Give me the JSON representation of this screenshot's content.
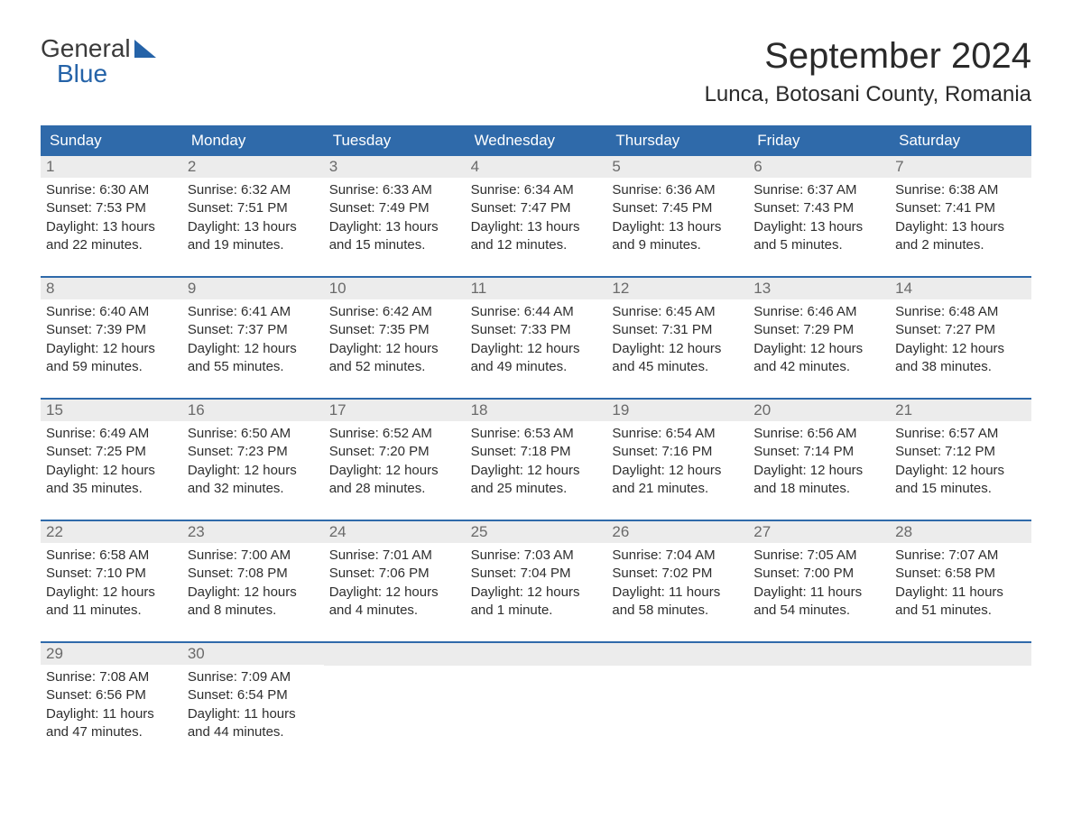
{
  "logo": {
    "general": "General",
    "blue": "Blue"
  },
  "title": "September 2024",
  "location": "Lunca, Botosani County, Romania",
  "style": {
    "header_bg": "#2f6aaa",
    "header_fg": "#ffffff",
    "daynum_bg": "#ececec",
    "daynum_fg": "#6a6a6a",
    "body_fg": "#2e2e2e",
    "week_border": "#2f6aaa",
    "title_fontsize": 40,
    "location_fontsize": 24,
    "dow_fontsize": 17,
    "body_fontsize": 15
  },
  "dow": [
    "Sunday",
    "Monday",
    "Tuesday",
    "Wednesday",
    "Thursday",
    "Friday",
    "Saturday"
  ],
  "weeks": [
    [
      {
        "n": "1",
        "sr": "Sunrise: 6:30 AM",
        "ss": "Sunset: 7:53 PM",
        "d1": "Daylight: 13 hours",
        "d2": "and 22 minutes."
      },
      {
        "n": "2",
        "sr": "Sunrise: 6:32 AM",
        "ss": "Sunset: 7:51 PM",
        "d1": "Daylight: 13 hours",
        "d2": "and 19 minutes."
      },
      {
        "n": "3",
        "sr": "Sunrise: 6:33 AM",
        "ss": "Sunset: 7:49 PM",
        "d1": "Daylight: 13 hours",
        "d2": "and 15 minutes."
      },
      {
        "n": "4",
        "sr": "Sunrise: 6:34 AM",
        "ss": "Sunset: 7:47 PM",
        "d1": "Daylight: 13 hours",
        "d2": "and 12 minutes."
      },
      {
        "n": "5",
        "sr": "Sunrise: 6:36 AM",
        "ss": "Sunset: 7:45 PM",
        "d1": "Daylight: 13 hours",
        "d2": "and 9 minutes."
      },
      {
        "n": "6",
        "sr": "Sunrise: 6:37 AM",
        "ss": "Sunset: 7:43 PM",
        "d1": "Daylight: 13 hours",
        "d2": "and 5 minutes."
      },
      {
        "n": "7",
        "sr": "Sunrise: 6:38 AM",
        "ss": "Sunset: 7:41 PM",
        "d1": "Daylight: 13 hours",
        "d2": "and 2 minutes."
      }
    ],
    [
      {
        "n": "8",
        "sr": "Sunrise: 6:40 AM",
        "ss": "Sunset: 7:39 PM",
        "d1": "Daylight: 12 hours",
        "d2": "and 59 minutes."
      },
      {
        "n": "9",
        "sr": "Sunrise: 6:41 AM",
        "ss": "Sunset: 7:37 PM",
        "d1": "Daylight: 12 hours",
        "d2": "and 55 minutes."
      },
      {
        "n": "10",
        "sr": "Sunrise: 6:42 AM",
        "ss": "Sunset: 7:35 PM",
        "d1": "Daylight: 12 hours",
        "d2": "and 52 minutes."
      },
      {
        "n": "11",
        "sr": "Sunrise: 6:44 AM",
        "ss": "Sunset: 7:33 PM",
        "d1": "Daylight: 12 hours",
        "d2": "and 49 minutes."
      },
      {
        "n": "12",
        "sr": "Sunrise: 6:45 AM",
        "ss": "Sunset: 7:31 PM",
        "d1": "Daylight: 12 hours",
        "d2": "and 45 minutes."
      },
      {
        "n": "13",
        "sr": "Sunrise: 6:46 AM",
        "ss": "Sunset: 7:29 PM",
        "d1": "Daylight: 12 hours",
        "d2": "and 42 minutes."
      },
      {
        "n": "14",
        "sr": "Sunrise: 6:48 AM",
        "ss": "Sunset: 7:27 PM",
        "d1": "Daylight: 12 hours",
        "d2": "and 38 minutes."
      }
    ],
    [
      {
        "n": "15",
        "sr": "Sunrise: 6:49 AM",
        "ss": "Sunset: 7:25 PM",
        "d1": "Daylight: 12 hours",
        "d2": "and 35 minutes."
      },
      {
        "n": "16",
        "sr": "Sunrise: 6:50 AM",
        "ss": "Sunset: 7:23 PM",
        "d1": "Daylight: 12 hours",
        "d2": "and 32 minutes."
      },
      {
        "n": "17",
        "sr": "Sunrise: 6:52 AM",
        "ss": "Sunset: 7:20 PM",
        "d1": "Daylight: 12 hours",
        "d2": "and 28 minutes."
      },
      {
        "n": "18",
        "sr": "Sunrise: 6:53 AM",
        "ss": "Sunset: 7:18 PM",
        "d1": "Daylight: 12 hours",
        "d2": "and 25 minutes."
      },
      {
        "n": "19",
        "sr": "Sunrise: 6:54 AM",
        "ss": "Sunset: 7:16 PM",
        "d1": "Daylight: 12 hours",
        "d2": "and 21 minutes."
      },
      {
        "n": "20",
        "sr": "Sunrise: 6:56 AM",
        "ss": "Sunset: 7:14 PM",
        "d1": "Daylight: 12 hours",
        "d2": "and 18 minutes."
      },
      {
        "n": "21",
        "sr": "Sunrise: 6:57 AM",
        "ss": "Sunset: 7:12 PM",
        "d1": "Daylight: 12 hours",
        "d2": "and 15 minutes."
      }
    ],
    [
      {
        "n": "22",
        "sr": "Sunrise: 6:58 AM",
        "ss": "Sunset: 7:10 PM",
        "d1": "Daylight: 12 hours",
        "d2": "and 11 minutes."
      },
      {
        "n": "23",
        "sr": "Sunrise: 7:00 AM",
        "ss": "Sunset: 7:08 PM",
        "d1": "Daylight: 12 hours",
        "d2": "and 8 minutes."
      },
      {
        "n": "24",
        "sr": "Sunrise: 7:01 AM",
        "ss": "Sunset: 7:06 PM",
        "d1": "Daylight: 12 hours",
        "d2": "and 4 minutes."
      },
      {
        "n": "25",
        "sr": "Sunrise: 7:03 AM",
        "ss": "Sunset: 7:04 PM",
        "d1": "Daylight: 12 hours",
        "d2": "and 1 minute."
      },
      {
        "n": "26",
        "sr": "Sunrise: 7:04 AM",
        "ss": "Sunset: 7:02 PM",
        "d1": "Daylight: 11 hours",
        "d2": "and 58 minutes."
      },
      {
        "n": "27",
        "sr": "Sunrise: 7:05 AM",
        "ss": "Sunset: 7:00 PM",
        "d1": "Daylight: 11 hours",
        "d2": "and 54 minutes."
      },
      {
        "n": "28",
        "sr": "Sunrise: 7:07 AM",
        "ss": "Sunset: 6:58 PM",
        "d1": "Daylight: 11 hours",
        "d2": "and 51 minutes."
      }
    ],
    [
      {
        "n": "29",
        "sr": "Sunrise: 7:08 AM",
        "ss": "Sunset: 6:56 PM",
        "d1": "Daylight: 11 hours",
        "d2": "and 47 minutes."
      },
      {
        "n": "30",
        "sr": "Sunrise: 7:09 AM",
        "ss": "Sunset: 6:54 PM",
        "d1": "Daylight: 11 hours",
        "d2": "and 44 minutes."
      },
      null,
      null,
      null,
      null,
      null
    ]
  ]
}
